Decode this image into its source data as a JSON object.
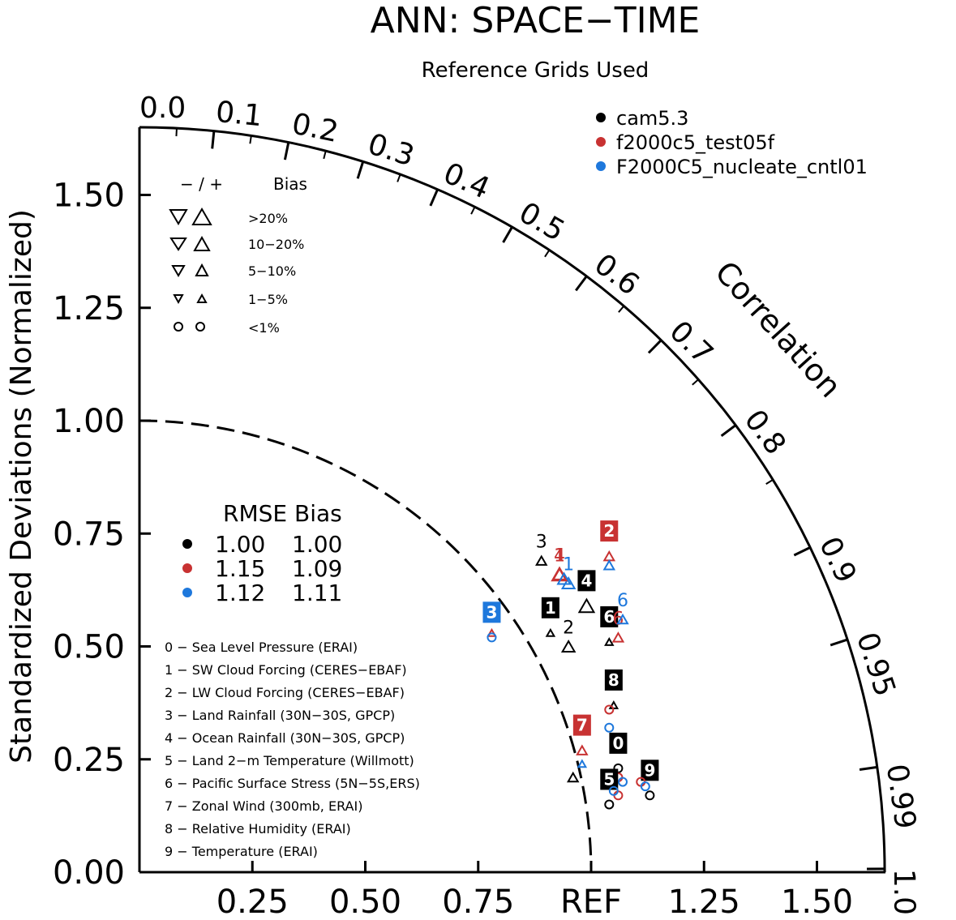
{
  "chart_data": {
    "type": "taylor",
    "title": "ANN: SPACE−TIME",
    "subtitle": "Reference Grids Used",
    "ylabel": "Standardized Deviations (Normalized)",
    "arc_label": "Correlation",
    "std_max": 1.65,
    "y_ticks": [
      "0.00",
      "0.25",
      "0.50",
      "0.75",
      "1.00",
      "1.25",
      "1.50"
    ],
    "x_ticks": [
      "0.25",
      "0.50",
      "0.75",
      "REF",
      "1.25",
      "1.50"
    ],
    "correlation_labels": [
      "0.0",
      "0.1",
      "0.2",
      "0.3",
      "0.4",
      "0.5",
      "0.6",
      "0.7",
      "0.8",
      "0.9",
      "0.95",
      "0.99",
      "1.0"
    ],
    "cases": [
      {
        "name": "cam5.3",
        "color": "#000000",
        "rmse": "1.00",
        "bias": "1.00"
      },
      {
        "name": "f2000c5_test05f",
        "color": "#c83232",
        "rmse": "1.15",
        "bias": "1.09"
      },
      {
        "name": "F2000C5_nucleate_cntl01",
        "color": "#1e78dc",
        "rmse": "1.12",
        "bias": "1.11"
      }
    ],
    "rmse_table": {
      "heading_rmse": "RMSE",
      "heading_bias": "Bias"
    },
    "bias_legend": {
      "heading_sign": "− / +",
      "heading_bias": "Bias",
      "rows": [
        ">20%",
        "10−20%",
        "5−10%",
        "1−5%",
        "<1%"
      ]
    },
    "variables": [
      "0 − Sea Level Pressure (ERAI)",
      "1 − SW Cloud Forcing (CERES−EBAF)",
      "2 − LW Cloud Forcing (CERES−EBAF)",
      "3 − Land Rainfall (30N−30S, GPCP)",
      "4 − Ocean Rainfall (30N−30S, GPCP)",
      "5 − Land 2−m Temperature (Willmott)",
      "6 − Pacific Surface Stress (5N−5S,ERS)",
      "7 − Zonal Wind (300mb, ERAI)",
      "8 − Relative Humidity (ERAI)",
      "9 − Temperature (ERAI)"
    ],
    "points": [
      {
        "case": 0,
        "id": "0",
        "x": 1.06,
        "y": 0.23,
        "marker": "circle",
        "label": "box"
      },
      {
        "case": 1,
        "id": "0",
        "x": 1.06,
        "y": 0.21,
        "marker": "circle"
      },
      {
        "case": 2,
        "id": "0",
        "x": 1.07,
        "y": 0.2,
        "marker": "circle"
      },
      {
        "case": 0,
        "id": "1",
        "x": 0.91,
        "y": 0.53,
        "marker": "up",
        "size": 1,
        "label": "box"
      },
      {
        "case": 1,
        "id": "1",
        "x": 0.93,
        "y": 0.66,
        "marker": "up",
        "size": 3,
        "label": "text"
      },
      {
        "case": 2,
        "id": "1",
        "x": 0.95,
        "y": 0.64,
        "marker": "up",
        "size": 3,
        "label": "text"
      },
      {
        "case": 0,
        "id": "2",
        "x": 0.95,
        "y": 0.5,
        "marker": "up",
        "size": 3,
        "label": "text"
      },
      {
        "case": 1,
        "id": "2",
        "x": 1.04,
        "y": 0.7,
        "marker": "up",
        "size": 2,
        "label": "box"
      },
      {
        "case": 2,
        "id": "2",
        "x": 1.04,
        "y": 0.68,
        "marker": "up",
        "size": 2
      },
      {
        "case": 0,
        "id": "3",
        "x": 0.89,
        "y": 0.69,
        "marker": "up",
        "size": 2,
        "label": "text"
      },
      {
        "case": 1,
        "id": "3",
        "x": 0.78,
        "y": 0.53,
        "marker": "up",
        "size": 1
      },
      {
        "case": 2,
        "id": "3",
        "x": 0.78,
        "y": 0.52,
        "marker": "circle",
        "label": "box"
      },
      {
        "case": 0,
        "id": "4",
        "x": 0.99,
        "y": 0.59,
        "marker": "up",
        "size": 4,
        "label": "box"
      },
      {
        "case": 1,
        "id": "4",
        "x": 0.93,
        "y": 0.66,
        "marker": "up",
        "size": 4,
        "label": "text"
      },
      {
        "case": 2,
        "id": "4",
        "x": 0.94,
        "y": 0.65,
        "marker": "up",
        "size": 3
      },
      {
        "case": 0,
        "id": "5",
        "x": 1.04,
        "y": 0.15,
        "marker": "circle",
        "label": "box"
      },
      {
        "case": 1,
        "id": "5",
        "x": 1.06,
        "y": 0.17,
        "marker": "circle"
      },
      {
        "case": 2,
        "id": "5",
        "x": 1.05,
        "y": 0.18,
        "marker": "circle"
      },
      {
        "case": 0,
        "id": "6",
        "x": 1.04,
        "y": 0.51,
        "marker": "up",
        "size": 1,
        "label": "box"
      },
      {
        "case": 1,
        "id": "6",
        "x": 1.06,
        "y": 0.52,
        "marker": "up",
        "size": 2,
        "label": "text"
      },
      {
        "case": 2,
        "id": "6",
        "x": 1.07,
        "y": 0.56,
        "marker": "up",
        "size": 2,
        "label": "text"
      },
      {
        "case": 0,
        "id": "7",
        "x": 0.96,
        "y": 0.21,
        "marker": "up",
        "size": 2
      },
      {
        "case": 1,
        "id": "7",
        "x": 0.98,
        "y": 0.27,
        "marker": "up",
        "size": 2,
        "label": "box"
      },
      {
        "case": 2,
        "id": "7",
        "x": 0.98,
        "y": 0.24,
        "marker": "up",
        "size": 1
      },
      {
        "case": 0,
        "id": "8",
        "x": 1.05,
        "y": 0.37,
        "marker": "up",
        "size": 1,
        "label": "box"
      },
      {
        "case": 1,
        "id": "8",
        "x": 1.04,
        "y": 0.36,
        "marker": "circle"
      },
      {
        "case": 2,
        "id": "8",
        "x": 1.04,
        "y": 0.32,
        "marker": "circle"
      },
      {
        "case": 0,
        "id": "9",
        "x": 1.13,
        "y": 0.17,
        "marker": "circle",
        "label": "box"
      },
      {
        "case": 1,
        "id": "9",
        "x": 1.11,
        "y": 0.2,
        "marker": "circle"
      },
      {
        "case": 2,
        "id": "9",
        "x": 1.12,
        "y": 0.19,
        "marker": "circle"
      }
    ]
  }
}
